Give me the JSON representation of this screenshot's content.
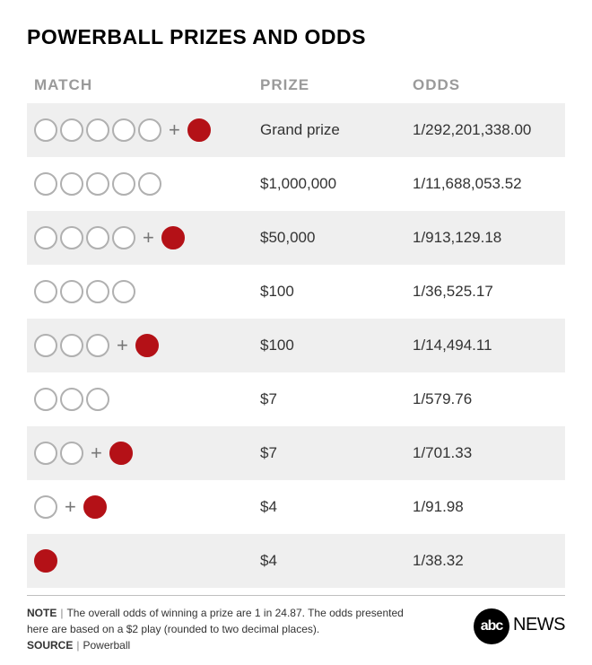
{
  "title": "POWERBALL PRIZES AND ODDS",
  "columns": {
    "match": "MATCH",
    "prize": "PRIZE",
    "odds": "ODDS"
  },
  "rows": [
    {
      "white": 5,
      "red": true,
      "prize": "Grand prize",
      "odds": "1/292,201,338.00"
    },
    {
      "white": 5,
      "red": false,
      "prize": "$1,000,000",
      "odds": "1/11,688,053.52"
    },
    {
      "white": 4,
      "red": true,
      "prize": "$50,000",
      "odds": "1/913,129.18"
    },
    {
      "white": 4,
      "red": false,
      "prize": "$100",
      "odds": "1/36,525.17"
    },
    {
      "white": 3,
      "red": true,
      "prize": "$100",
      "odds": "1/14,494.11"
    },
    {
      "white": 3,
      "red": false,
      "prize": "$7",
      "odds": "1/579.76"
    },
    {
      "white": 2,
      "red": true,
      "prize": "$7",
      "odds": "1/701.33"
    },
    {
      "white": 1,
      "red": true,
      "prize": "$4",
      "odds": "1/91.98"
    },
    {
      "white": 0,
      "red": true,
      "prize": "$4",
      "odds": "1/38.32"
    }
  ],
  "note_label": "NOTE",
  "note_text": "The overall odds of winning a prize are 1 in 24.87. The odds presented here are based on a $2 play (rounded to two decimal places).",
  "source_label": "SOURCE",
  "source_text": "Powerball",
  "logo": {
    "abc": "abc",
    "news": "NEWS"
  },
  "colors": {
    "red_ball": "#b41117",
    "ball_border": "#b0b0b0",
    "row_alt_bg": "#efefef",
    "header_text": "#9a9a9a",
    "body_text": "#333333"
  }
}
